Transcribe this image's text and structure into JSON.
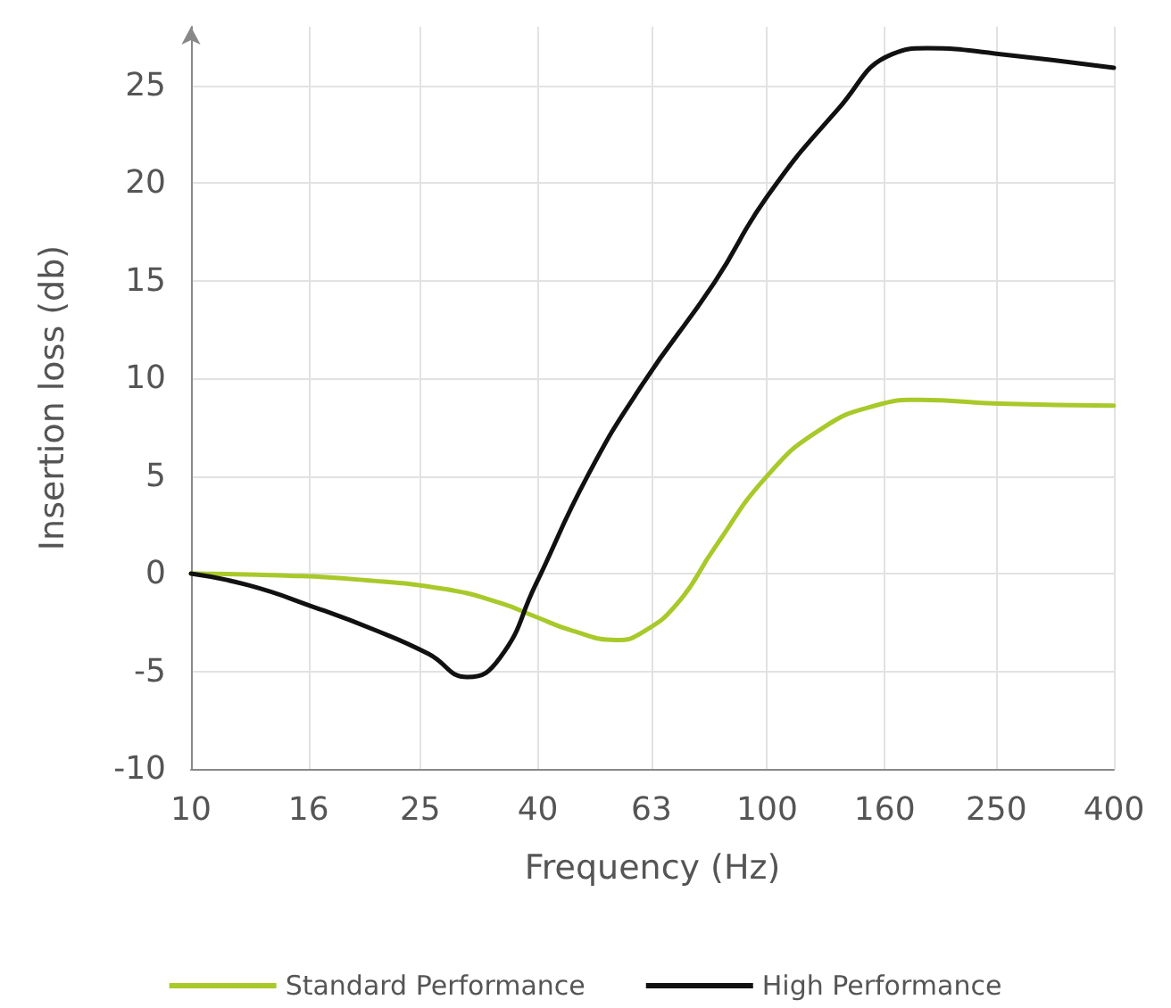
{
  "chart_data": {
    "type": "line",
    "xlabel": "Frequency (Hz)",
    "ylabel": "Insertion loss (db)",
    "log": "x",
    "xlim": [
      10,
      400
    ],
    "xticks": [
      10,
      16,
      25,
      40,
      63,
      100,
      160,
      250,
      400
    ],
    "ylim": [
      -10,
      28
    ],
    "yticks": [
      -10,
      -5,
      0,
      5,
      10,
      15,
      20,
      25
    ],
    "grid": true,
    "legend": "bottom",
    "marker": "none",
    "line_style": "solid",
    "series": [
      {
        "name": "Standard Performance",
        "color": "#a8c92a",
        "x": [
          10,
          14.6,
          19.4,
          27.7,
          34.4,
          39.6,
          45.7,
          54.8,
          60.8,
          70,
          81,
          100,
          124,
          154,
          184,
          254,
          400
        ],
        "values": [
          0,
          -0.1,
          -0.3,
          -0.8,
          -1.5,
          -2.2,
          -2.9,
          -3.4,
          -3.0,
          -1.5,
          1.3,
          5.0,
          7.4,
          8.6,
          8.9,
          8.7,
          8.6
        ]
      },
      {
        "name": "High Performance",
        "color": "#111111",
        "x": [
          10,
          12.6,
          16.3,
          20.9,
          25.8,
          30.2,
          34.4,
          39.6,
          49,
          60.8,
          81,
          100,
          133,
          165,
          190,
          254,
          400
        ],
        "values": [
          0,
          -0.6,
          -1.7,
          -2.9,
          -4.1,
          -5.3,
          -4.3,
          -0.6,
          5.1,
          9.7,
          14.9,
          19.3,
          23.8,
          26.6,
          26.9,
          26.6,
          25.9
        ]
      }
    ]
  }
}
